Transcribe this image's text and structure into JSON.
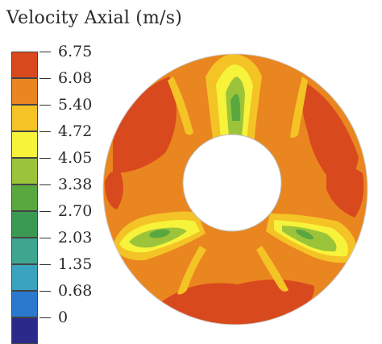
{
  "figure": {
    "title": "Velocity Axial (m/s)"
  },
  "legend": {
    "levels": [
      {
        "label": "6.75",
        "color": "#d9491e"
      },
      {
        "label": "6.08",
        "color": "#e9861f"
      },
      {
        "label": "5.40",
        "color": "#f4c326"
      },
      {
        "label": "4.72",
        "color": "#f7f33a"
      },
      {
        "label": "4.05",
        "color": "#9cc43a"
      },
      {
        "label": "3.38",
        "color": "#59a83f"
      },
      {
        "label": "2.70",
        "color": "#3b9a52"
      },
      {
        "label": "2.03",
        "color": "#3ea58f"
      },
      {
        "label": "1.35",
        "color": "#3aa3bf"
      },
      {
        "label": "0.68",
        "color": "#2a79cf"
      },
      {
        "label": "0",
        "color": "#2b2a8a"
      }
    ]
  },
  "palette": {
    "max": "#d9491e",
    "high": "#e9861f",
    "mid_high": "#f4c326",
    "mid": "#f7f33a",
    "low_mid": "#9cc43a",
    "low": "#59a83f"
  }
}
